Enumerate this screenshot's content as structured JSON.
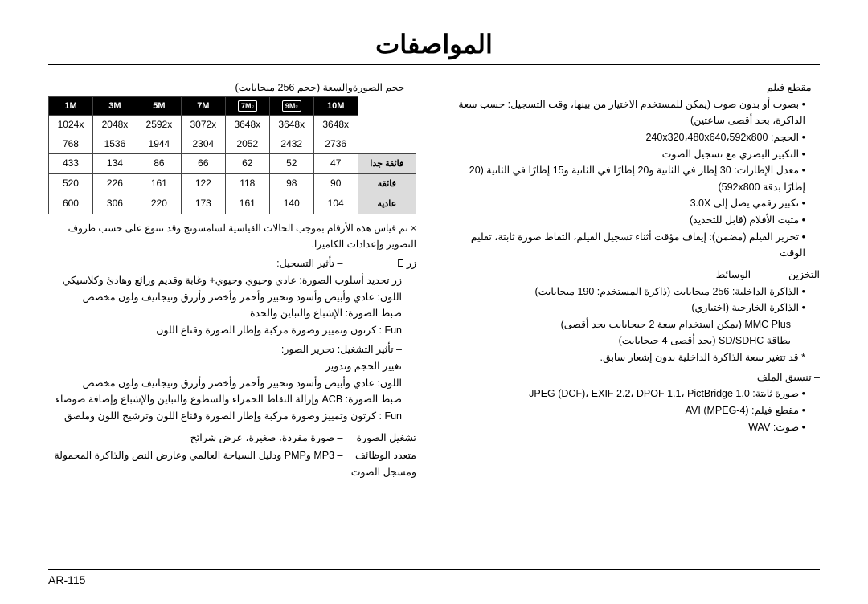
{
  "page_title": "المواصفات",
  "page_number": "AR-115",
  "right": {
    "movie": {
      "heading": "مقطع فيلم",
      "items": [
        "بصوت أو بدون صوت (يمكن للمستخدم الاختيار من بينها، وقت التسجيل: حسب سعة الذاكرة، بحد أقصى ساعتين)",
        "الحجم: 240x320،480x640،592x800",
        "التكبير البصري مع تسجيل الصوت",
        "معدل الإطارات: 30 إطار في الثانية و20 إطارًا في الثانية و15 إطارًا في الثانية (20 إطارًا بدقة 592x800)",
        "تكبير رقمي يصل إلى 3.0X",
        "مثبت الأفلام (قابل للتحديد)",
        "تحرير الفيلم (مضمن): إيقاف مؤقت أثناء تسجيل الفيلم، التقاط صورة ثابتة، تقليم الوقت"
      ]
    },
    "storage": {
      "label": "التخزين",
      "heading": "الوسائط",
      "items": [
        "الذاكرة الداخلية: 256 ميجابايت (ذاكرة المستخدم: 190 ميجابايت)",
        "الذاكرة الخارجية (اختياري)",
        "MMC Plus (يمكن استخدام سعة 2 جيجابايت بحد أقصى)",
        "بطاقة SD/SDHC (بحد أقصى 4 جيجابايت)"
      ],
      "note": "قد تتغير سعة الذاكرة الداخلية بدون إشعار سابق."
    },
    "file_format": {
      "heading": "تنسيق الملف",
      "items": [
        "صورة ثابتة: JPEG (DCF)، EXIF 2.2، DPOF 1.1، PictBridge 1.0",
        "مقطع فيلم: AVI (MPEG-4)",
        "صوت: WAV"
      ]
    }
  },
  "left": {
    "capacity_intro": "حجم الصورةوالسعة (حجم 256 ميجابايت)",
    "table": {
      "headers": [
        "1M",
        "3M",
        "5M",
        "7M",
        "7M▫",
        "9M▫",
        "10M"
      ],
      "res_rows": [
        [
          "1024x 768",
          "2048x 1536",
          "2592x 1944",
          "3072x 2304",
          "3648x 2052",
          "3648x 2432",
          "3648x 2736"
        ]
      ],
      "data_rows": [
        {
          "label": "فائقة جدا",
          "cells": [
            "433",
            "134",
            "86",
            "66",
            "62",
            "52",
            "47"
          ]
        },
        {
          "label": "فائقة",
          "cells": [
            "520",
            "226",
            "161",
            "122",
            "118",
            "98",
            "90"
          ]
        },
        {
          "label": "عادية",
          "cells": [
            "600",
            "306",
            "220",
            "173",
            "161",
            "140",
            "104"
          ]
        }
      ]
    },
    "footnote": "× تم قياس هذه الأرقام بموجب الحالات القياسية لسامسونج وقد تتنوع على حسب ظروف التصوير وإعدادات الكاميرا.",
    "e_button": {
      "label": "زر E",
      "sub_label": "تأثير التسجيل:",
      "lines": [
        "زر تحديد أسلوب الصورة: عادي وحيوي وحيوي+ وغابة وقديم ورائع وهادئ وكلاسيكي",
        "اللون: عادي وأبيض وأسود وتحبير وأحمر وأخضر وأزرق ونيجاتيف ولون مخصص",
        "ضبط الصورة: الإشباع والتباين والحدة",
        "Fun : كرتون وتمييز وصورة مركبة وإطار الصورة وقناع اللون"
      ],
      "play_label": "تأثير التشغيل: تحرير الصور:",
      "play_lines": [
        "تغيير الحجم وتدوير",
        "اللون: عادي وأبيض وأسود وتحبير وأحمر وأخضر وأزرق ونيجاتيف ولون مخصص",
        "ضبط الصورة: ACB وإزالة النقاط الحمراء والسطوع والتباين والإشباع وإضافة ضوضاء",
        "Fun : كرتون وتمييز وصورة مركبة وإطار الصورة وقناع اللون وترشيح اللون وملصق"
      ]
    },
    "playback": {
      "label": "تشغيل الصورة",
      "value": "صورة مفردة، صغيرة، عرض شرائح"
    },
    "multi": {
      "label": "متعدد الوظائف",
      "value": "MP3 وPMP ودليل السياحة العالمي وعارض النص والذاكرة المحمولة ومسجل الصوت"
    }
  }
}
